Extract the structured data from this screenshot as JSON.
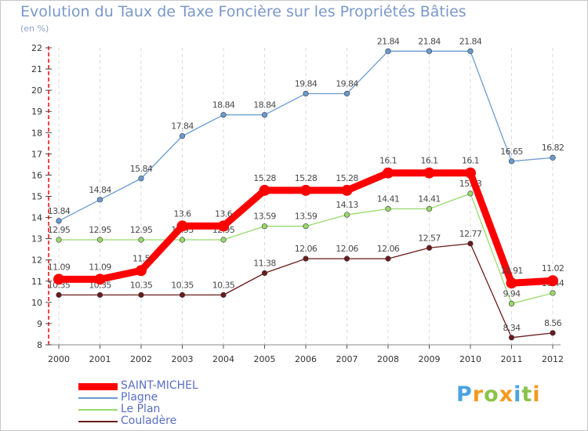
{
  "title": "Evolution du Taux de Taxe Foncière sur les Propriétés Bâties",
  "subtitle": "(en %)",
  "chart_data": {
    "type": "line",
    "title": "Evolution du Taux de Taxe Foncière sur les Propriétés Bâties",
    "ylabel": "(en %)",
    "xlabel": "",
    "categories": [
      "2000",
      "2001",
      "2002",
      "2003",
      "2004",
      "2005",
      "2006",
      "2007",
      "2008",
      "2009",
      "2010",
      "2011",
      "2012"
    ],
    "yticks": [
      "8",
      "9",
      "10",
      "11",
      "12",
      "13",
      "14",
      "15",
      "16",
      "17",
      "18",
      "19",
      "20",
      "21",
      "22"
    ],
    "ylim": [
      8,
      22
    ],
    "legend_position": "bottom-left",
    "series": [
      {
        "name": "Couladère",
        "color": "#6b1a1a",
        "values": [
          10.35,
          10.35,
          10.35,
          10.35,
          10.35,
          11.38,
          12.06,
          12.06,
          12.06,
          12.57,
          12.77,
          8.34,
          8.56
        ],
        "labels": [
          "10.35",
          "10.35",
          "10.35",
          "10.35",
          "10.35",
          "11.38",
          "12.06",
          "12.06",
          "12.06",
          "12.57",
          "12.77",
          "8.34",
          "8.56"
        ]
      },
      {
        "name": "Le Plan",
        "color": "#99d96a",
        "values": [
          12.95,
          12.95,
          12.95,
          12.95,
          12.95,
          13.59,
          13.59,
          14.13,
          14.41,
          14.41,
          15.13,
          9.94,
          10.44
        ],
        "labels": [
          "12.95",
          "12.95",
          "12.95",
          "12.95",
          "12.95",
          "13.59",
          "13.59",
          "14.13",
          "14.41",
          "14.41",
          "15.13",
          "9.94",
          "10.44"
        ]
      },
      {
        "name": "Plagne",
        "color": "#6a9bd0",
        "values": [
          13.84,
          14.84,
          15.84,
          17.84,
          18.84,
          18.84,
          19.84,
          19.84,
          21.84,
          21.84,
          21.84,
          16.65,
          16.82
        ],
        "labels": [
          "13.84",
          "14.84",
          "15.84",
          "17.84",
          "18.84",
          "18.84",
          "19.84",
          "19.84",
          "21.84",
          "21.84",
          "21.84",
          "16.65",
          "16.82"
        ]
      },
      {
        "name": "SAINT-MICHEL",
        "color": "#ff0000",
        "values": [
          11.09,
          11.09,
          11.5,
          13.6,
          13.6,
          15.28,
          15.28,
          15.28,
          16.1,
          16.1,
          16.1,
          10.91,
          11.02
        ],
        "labels": [
          "11.09",
          "11.09",
          "11.5",
          "13.6",
          "13.6",
          "15.28",
          "15.28",
          "15.28",
          "16.1",
          "16.1",
          "16.1",
          "10.91",
          "11.02"
        ]
      }
    ]
  },
  "legend": [
    {
      "label": "SAINT-MICHEL",
      "color": "#ff0000"
    },
    {
      "label": "Plagne",
      "color": "#6a9bd0"
    },
    {
      "label": "Le Plan",
      "color": "#99d96a"
    },
    {
      "label": "Couladère",
      "color": "#6b1a1a"
    }
  ],
  "logo": {
    "text": "Proxiti",
    "letters": [
      {
        "ch": "P",
        "color": "#4aa3e0"
      },
      {
        "ch": "r",
        "color": "#f39a1e"
      },
      {
        "ch": "o",
        "color": "#8bc34a"
      },
      {
        "ch": "x",
        "color": "#f39a1e"
      },
      {
        "ch": "i",
        "color": "#4aa3e0"
      },
      {
        "ch": "t",
        "color": "#8bc34a"
      },
      {
        "ch": "i",
        "color": "#f39a1e"
      }
    ]
  }
}
